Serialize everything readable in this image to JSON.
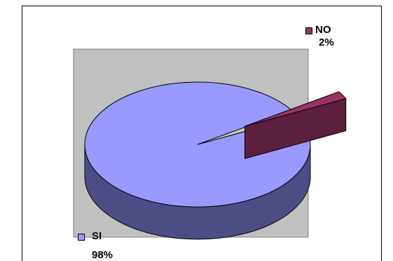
{
  "chart_data": {
    "type": "pie",
    "style": "3d-exploded",
    "categories": [
      "SI",
      "NO"
    ],
    "values": [
      98,
      2
    ],
    "value_labels": [
      "98%",
      "2%"
    ],
    "colors": {
      "SI": "#9999ff",
      "SI_side": "#4d4d85",
      "NO": "#993366",
      "NO_side": "#5c1f3d",
      "plot_background": "#c0c0c0"
    },
    "title": "",
    "legend": "inline-labels"
  }
}
